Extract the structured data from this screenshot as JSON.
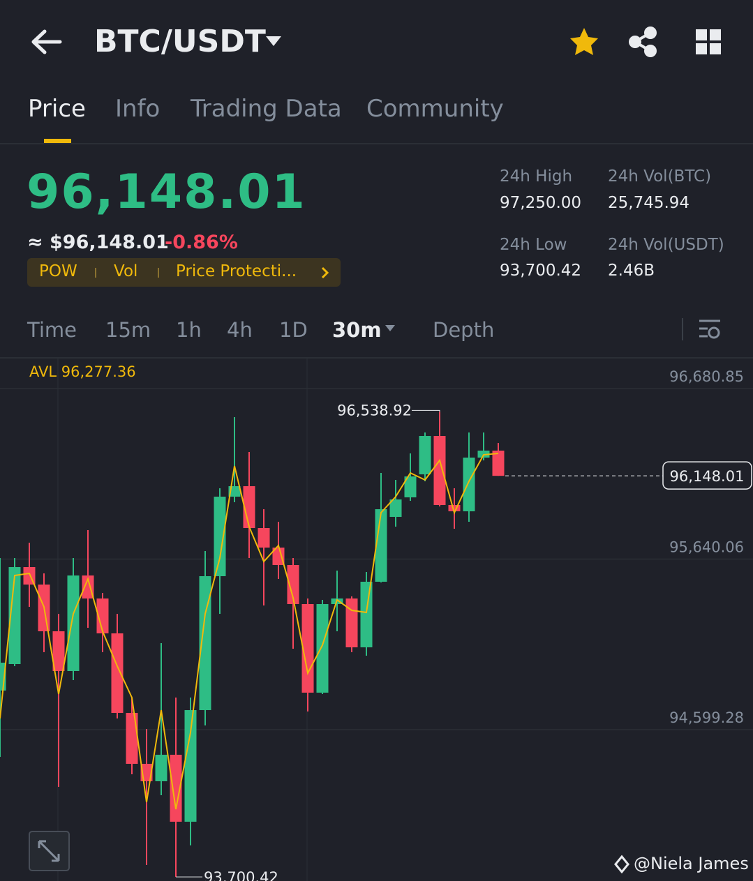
{
  "header": {
    "title": "BTC/USDT"
  },
  "tabs": [
    "Price",
    "Info",
    "Trading Data",
    "Community"
  ],
  "price": {
    "last": "96,148.01",
    "usd": "≈ $96,148.01",
    "change": "-0.86%"
  },
  "tags": [
    "POW",
    "Vol",
    "Price Protecti..."
  ],
  "stats": [
    {
      "label": "24h High",
      "value": "97,250.00"
    },
    {
      "label": "24h Vol(BTC)",
      "value": "25,745.94"
    },
    {
      "label": "24h Low",
      "value": "93,700.42"
    },
    {
      "label": "24h Vol(USDT)",
      "value": "2.46B"
    }
  ],
  "intervals": [
    "Time",
    "15m",
    "1h",
    "4h",
    "1D",
    "30m",
    "Depth"
  ],
  "watermark": "@Niela James",
  "chart_data": {
    "type": "candlestick",
    "annotations": {
      "avl": "AVL 96,277.36",
      "high": "96,538.92",
      "low": "93,700.42",
      "last": "96,148.01"
    },
    "up_color": "#2ebd85",
    "down_color": "#f6465d",
    "ma_color": "#f0b90b",
    "ylim": [
      93675.55,
      96868.15
    ],
    "yticks": [
      {
        "value": 96680.85,
        "label": "96,680.85"
      },
      {
        "value": 95640.06,
        "label": "95,640.06"
      },
      {
        "value": 94599.28,
        "label": "94,599.28"
      }
    ],
    "grid": true,
    "open": [
      94837.7,
      94999.4,
      95591.1,
      95484.7,
      95199.5,
      94956.9,
      95540.0,
      95399.6,
      95186.7,
      94701.4,
      94390.7,
      94284.3,
      94446.0,
      94037.3,
      94718.4,
      95535.8,
      96021.0,
      96084.9,
      95829.5,
      95710.3,
      95603.9,
      95365.5,
      94824.9,
      95365.5,
      95399.6,
      95101.6,
      95501.8,
      95897.6,
      96016.8,
      96157.3,
      96391.4,
      95970.0,
      95931.7,
      96259.4,
      96302.0
    ],
    "high": [
      95646.5,
      95646.5,
      95740.1,
      95552.8,
      95305.9,
      95646.5,
      95816.7,
      95433.6,
      95305.9,
      94795.1,
      94603.5,
      95127.1,
      94795.1,
      94795.1,
      95689.0,
      96072.1,
      96506.3,
      96293.5,
      95944.4,
      95867.8,
      95646.5,
      95399.6,
      95391.1,
      95569.8,
      95412.4,
      95561.3,
      96165.8,
      96123.2,
      96285.0,
      96412.7,
      96538.92,
      96072.1,
      96412.7,
      96412.7,
      96348.8
    ],
    "low": [
      94433.3,
      94986.6,
      95348.5,
      95071.8,
      94250.2,
      94901.5,
      95220.8,
      95071.8,
      94667.4,
      94326.8,
      93773.4,
      94199.2,
      93700.42,
      93892.6,
      94624.8,
      95305.9,
      95987.0,
      95646.5,
      95357.0,
      95518.8,
      95093.1,
      94709.9,
      94816.4,
      95199.5,
      95071.8,
      95050.5,
      95497.5,
      95838.0,
      95995.5,
      96114.7,
      95961.5,
      95825.2,
      95867.8,
      96242.4,
      96148.01
    ],
    "close": [
      95007.9,
      95591.1,
      95484.7,
      95199.5,
      94956.9,
      95540.0,
      95399.6,
      95186.7,
      94701.4,
      94390.7,
      94284.3,
      94446.0,
      94037.3,
      94718.4,
      95535.8,
      96021.0,
      96084.9,
      95829.5,
      95710.3,
      95603.9,
      95365.5,
      94824.9,
      95365.5,
      95399.6,
      95101.6,
      95501.8,
      95944.4,
      96004.0,
      96144.5,
      96391.4,
      95970.0,
      95931.7,
      96259.4,
      96302.0,
      96148.01
    ],
    "ma": [
      94667.4,
      95540.0,
      95552.8,
      95348.5,
      94816.4,
      95305.9,
      95518.8,
      95199.5,
      94986.6,
      94795.1,
      94156.6,
      94718.4,
      94114.0,
      94582.2,
      95305.9,
      95646.5,
      96208.4,
      95838.0,
      95625.2,
      95723.1,
      95403.8,
      94944.1,
      95114.4,
      95391.1,
      95327.2,
      95314.4,
      95923.2,
      96021.0,
      96165.8,
      96123.2,
      96242.4,
      95923.2,
      96114.7,
      96276.4,
      96285.0
    ]
  }
}
